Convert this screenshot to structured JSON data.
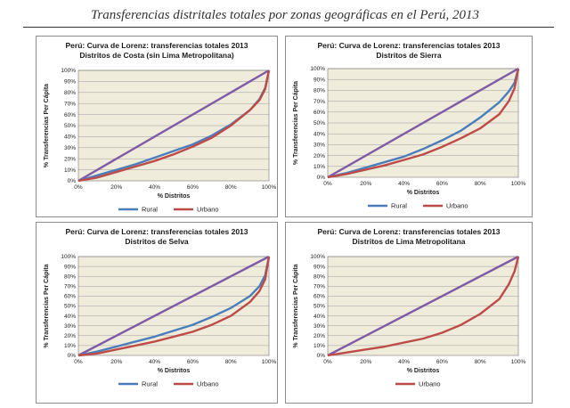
{
  "page": {
    "title": "Transferencias distritales totales por zonas geográficas en el Perú, 2013"
  },
  "colors": {
    "rural": "#4a7ebb",
    "urbano": "#be4b48",
    "equality": "#7f5aa6",
    "plot_bg": "#f0ecdc",
    "grid": "#9a9a9a"
  },
  "chart_data": [
    {
      "type": "line",
      "title_line1": "Perú: Curva de Lorenz: transferencias totales 2013",
      "title_line2": "Distritos de Costa (sin Lima Metropolitana)",
      "xlabel": "% Distritos",
      "ylabel": "% Transferencias Per Cápita",
      "xticks": [
        "0%",
        "20%",
        "40%",
        "60%",
        "80%",
        "100%"
      ],
      "yticks": [
        "0%",
        "10%",
        "20%",
        "30%",
        "40%",
        "50%",
        "60%",
        "70%",
        "80%",
        "90%",
        "100%"
      ],
      "xlim": [
        0,
        100
      ],
      "ylim": [
        0,
        100
      ],
      "grid": true,
      "legend_position": "bottom",
      "series": [
        {
          "name": "Rural",
          "color_key": "rural",
          "x": [
            0,
            10,
            20,
            30,
            40,
            50,
            60,
            70,
            80,
            90,
            95,
            98,
            100
          ],
          "y": [
            0,
            5,
            10,
            15,
            21,
            27,
            33,
            41,
            51,
            64,
            74,
            84,
            100
          ]
        },
        {
          "name": "Urbano",
          "color_key": "urbano",
          "x": [
            0,
            10,
            20,
            30,
            40,
            50,
            60,
            70,
            80,
            90,
            95,
            98,
            100
          ],
          "y": [
            0,
            3,
            8,
            13,
            18,
            24,
            31,
            39,
            50,
            64,
            73,
            83,
            100
          ]
        },
        {
          "name": "",
          "color_key": "equality",
          "x": [
            0,
            100
          ],
          "y": [
            0,
            100
          ]
        }
      ]
    },
    {
      "type": "line",
      "title_line1": "Perú: Curva de Lorenz: transferencias totales 2013",
      "title_line2": "Distritos de Sierra",
      "xlabel": "% Distritos",
      "ylabel": "% Transferencias Per Cápita",
      "xticks": [
        "0%",
        "20%",
        "40%",
        "60%",
        "80%",
        "100%"
      ],
      "yticks": [
        "0%",
        "10%",
        "20%",
        "30%",
        "40%",
        "50%",
        "60%",
        "70%",
        "80%",
        "90%",
        "100%"
      ],
      "xlim": [
        0,
        100
      ],
      "ylim": [
        0,
        100
      ],
      "grid": true,
      "legend_position": "bottom",
      "series": [
        {
          "name": "Rural",
          "color_key": "rural",
          "x": [
            0,
            10,
            20,
            30,
            40,
            50,
            60,
            70,
            80,
            90,
            95,
            98,
            100
          ],
          "y": [
            0,
            4,
            9,
            14,
            19,
            26,
            34,
            43,
            55,
            69,
            79,
            87,
            100
          ]
        },
        {
          "name": "Urbano",
          "color_key": "urbano",
          "x": [
            0,
            10,
            20,
            30,
            40,
            50,
            60,
            70,
            80,
            90,
            95,
            98,
            100
          ],
          "y": [
            0,
            3,
            7,
            11,
            16,
            21,
            28,
            36,
            45,
            58,
            70,
            82,
            100
          ]
        },
        {
          "name": "",
          "color_key": "equality",
          "x": [
            0,
            100
          ],
          "y": [
            0,
            100
          ]
        }
      ]
    },
    {
      "type": "line",
      "title_line1": "Perú: Curva de Lorenz: transferencias totales 2013",
      "title_line2": "Distritos de Selva",
      "xlabel": "% Distritos",
      "ylabel": "% Transferencias Per Cápita",
      "xticks": [
        "0%",
        "20%",
        "40%",
        "60%",
        "80%",
        "100%"
      ],
      "yticks": [
        "0%",
        "10%",
        "20%",
        "30%",
        "40%",
        "50%",
        "60%",
        "70%",
        "80%",
        "90%",
        "100%"
      ],
      "xlim": [
        0,
        100
      ],
      "ylim": [
        0,
        100
      ],
      "grid": true,
      "legend_position": "bottom",
      "series": [
        {
          "name": "Rural",
          "color_key": "rural",
          "x": [
            0,
            10,
            20,
            30,
            40,
            50,
            60,
            70,
            80,
            90,
            95,
            98,
            100
          ],
          "y": [
            0,
            4,
            9,
            14,
            19,
            25,
            31,
            39,
            48,
            60,
            70,
            81,
            100
          ]
        },
        {
          "name": "Urbano",
          "color_key": "urbano",
          "x": [
            0,
            10,
            20,
            30,
            40,
            50,
            60,
            70,
            80,
            90,
            95,
            98,
            100
          ],
          "y": [
            0,
            2,
            6,
            10,
            14,
            19,
            24,
            31,
            40,
            54,
            65,
            77,
            100
          ]
        },
        {
          "name": "",
          "color_key": "equality",
          "x": [
            0,
            100
          ],
          "y": [
            0,
            100
          ]
        }
      ]
    },
    {
      "type": "line",
      "title_line1": "Perú: Curva de Lorenz: transferencias totales 2013",
      "title_line2": "Distritos de Lima Metropolitana",
      "xlabel": "% Distritos",
      "ylabel": "% Transferencias Per Cápita",
      "xticks": [
        "0%",
        "20%",
        "40%",
        "60%",
        "80%",
        "100%"
      ],
      "yticks": [
        "0%",
        "10%",
        "20%",
        "30%",
        "40%",
        "50%",
        "60%",
        "70%",
        "80%",
        "90%",
        "100%"
      ],
      "xlim": [
        0,
        100
      ],
      "ylim": [
        0,
        100
      ],
      "grid": true,
      "legend_position": "bottom",
      "series": [
        {
          "name": "Urbano",
          "color_key": "urbano",
          "x": [
            0,
            10,
            20,
            30,
            40,
            50,
            60,
            70,
            80,
            90,
            95,
            98,
            100
          ],
          "y": [
            0,
            3,
            6,
            9,
            13,
            17,
            23,
            31,
            42,
            57,
            72,
            85,
            100
          ]
        },
        {
          "name": "",
          "color_key": "equality",
          "x": [
            0,
            100
          ],
          "y": [
            0,
            100
          ]
        }
      ]
    }
  ]
}
